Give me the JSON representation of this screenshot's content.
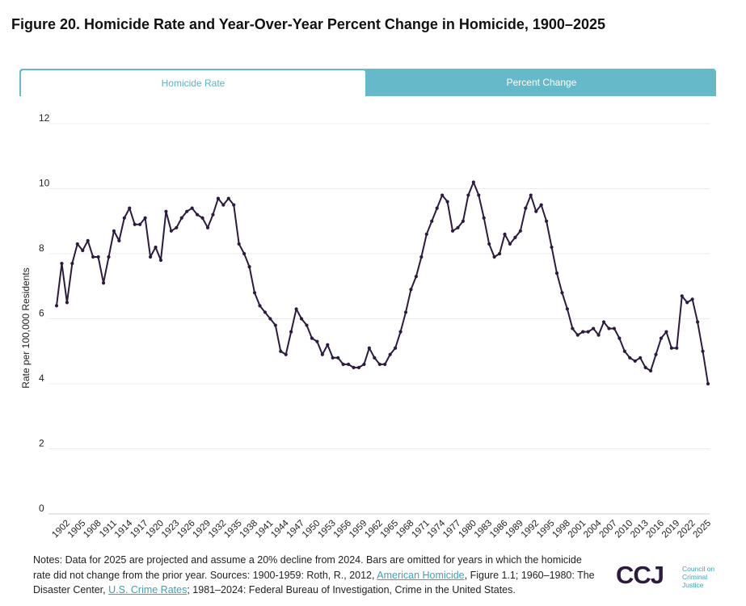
{
  "title": "Figure 20. Homicide Rate and Year-Over-Year Percent Change in Homicide, 1900–2025",
  "tabs": [
    {
      "label": "Homicide Rate",
      "active": true
    },
    {
      "label": "Percent Change",
      "active": false
    }
  ],
  "colors": {
    "tab_bg": "#65b9c8",
    "line": "#2c1b3e",
    "link": "#3aa3b5"
  },
  "chart_data": {
    "type": "line",
    "title": "",
    "xlabel": "",
    "ylabel": "Rate per 100,000 Residents",
    "ylim": [
      0,
      12
    ],
    "yticks": [
      0,
      2,
      4,
      6,
      8,
      10,
      12
    ],
    "x_start": 1900,
    "x_end": 2025,
    "xtick_labels": [
      "1902",
      "1905",
      "1908",
      "1911",
      "1914",
      "1917",
      "1920",
      "1923",
      "1926",
      "1929",
      "1932",
      "1935",
      "1938",
      "1941",
      "1944",
      "1947",
      "1950",
      "1953",
      "1956",
      "1959",
      "1962",
      "1965",
      "1968",
      "1971",
      "1974",
      "1977",
      "1980",
      "1983",
      "1986",
      "1989",
      "1992",
      "1995",
      "1998",
      "2001",
      "2004",
      "2007",
      "2010",
      "2013",
      "2016",
      "2019",
      "2022",
      "2025"
    ],
    "grid": true,
    "series": [
      {
        "name": "Homicide Rate",
        "x": [
          1900,
          1901,
          1902,
          1903,
          1904,
          1905,
          1906,
          1907,
          1908,
          1909,
          1910,
          1911,
          1912,
          1913,
          1914,
          1915,
          1916,
          1917,
          1918,
          1919,
          1920,
          1921,
          1922,
          1923,
          1924,
          1925,
          1926,
          1927,
          1928,
          1929,
          1930,
          1931,
          1932,
          1933,
          1934,
          1935,
          1936,
          1937,
          1938,
          1939,
          1940,
          1941,
          1942,
          1943,
          1944,
          1945,
          1946,
          1947,
          1948,
          1949,
          1950,
          1951,
          1952,
          1953,
          1954,
          1955,
          1956,
          1957,
          1958,
          1959,
          1960,
          1961,
          1962,
          1963,
          1964,
          1965,
          1966,
          1967,
          1968,
          1969,
          1970,
          1971,
          1972,
          1973,
          1974,
          1975,
          1976,
          1977,
          1978,
          1979,
          1980,
          1981,
          1982,
          1983,
          1984,
          1985,
          1986,
          1987,
          1988,
          1989,
          1990,
          1991,
          1992,
          1993,
          1994,
          1995,
          1996,
          1997,
          1998,
          1999,
          2000,
          2001,
          2002,
          2003,
          2004,
          2005,
          2006,
          2007,
          2008,
          2009,
          2010,
          2011,
          2012,
          2013,
          2014,
          2015,
          2016,
          2017,
          2018,
          2019,
          2020,
          2021,
          2022,
          2023,
          2024,
          2025
        ],
        "values": [
          6.4,
          7.7,
          6.5,
          7.7,
          8.3,
          8.1,
          8.4,
          7.9,
          7.9,
          7.1,
          7.9,
          8.7,
          8.4,
          9.1,
          9.4,
          8.9,
          8.9,
          9.1,
          7.9,
          8.2,
          7.8,
          9.3,
          8.7,
          8.8,
          9.1,
          9.3,
          9.4,
          9.2,
          9.1,
          8.8,
          9.2,
          9.7,
          9.5,
          9.7,
          9.5,
          8.3,
          8.0,
          7.6,
          6.8,
          6.4,
          6.2,
          6.0,
          5.8,
          5.0,
          4.9,
          5.6,
          6.3,
          6.0,
          5.8,
          5.4,
          5.3,
          4.9,
          5.2,
          4.8,
          4.8,
          4.6,
          4.6,
          4.5,
          4.5,
          4.6,
          5.1,
          4.8,
          4.6,
          4.6,
          4.9,
          5.1,
          5.6,
          6.2,
          6.9,
          7.3,
          7.9,
          8.6,
          9.0,
          9.4,
          9.8,
          9.6,
          8.7,
          8.8,
          9.0,
          9.8,
          10.2,
          9.8,
          9.1,
          8.3,
          7.9,
          8.0,
          8.6,
          8.3,
          8.5,
          8.7,
          9.4,
          9.8,
          9.3,
          9.5,
          9.0,
          8.2,
          7.4,
          6.8,
          6.3,
          5.7,
          5.5,
          5.6,
          5.6,
          5.7,
          5.5,
          5.9,
          5.7,
          5.7,
          5.4,
          5.0,
          4.8,
          4.7,
          4.8,
          4.5,
          4.4,
          4.9,
          5.4,
          5.6,
          5.1,
          5.1,
          6.7,
          6.5,
          6.6,
          5.9,
          5.0,
          4.0
        ]
      }
    ]
  },
  "notes": {
    "line1": "Notes: Data for 2025 are projected and assume a 20% decline from 2024. Bars are omitted for years in which the homicide rate did not change from the prior year. Sources: 1900-1959: Roth, R., 2012, ",
    "link1": "American Homicide",
    "part2": ", Figure 1.1; 1960–1980: The Disaster Center, ",
    "link2": "U.S. Crime Rates",
    "part3": "; 1981–2024: Federal Bureau of Investigation, Crime in the United States."
  },
  "logo": {
    "mark": "CCJ",
    "line1": "Council on",
    "line2": "Criminal",
    "line3": "Justice"
  }
}
